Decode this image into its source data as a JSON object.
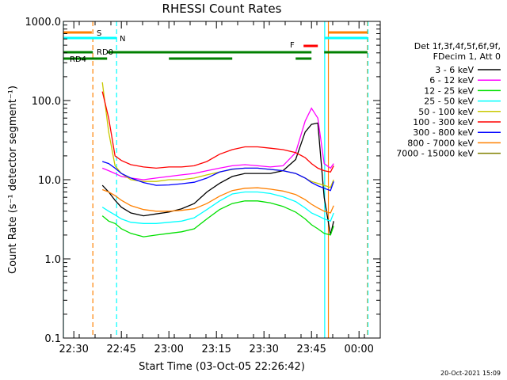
{
  "chart_data": {
    "type": "line",
    "title": "RHESSI Count Rates",
    "xlabel": "Start Time (03-Oct-05 22:26:42)",
    "ylabel": "Count Rate (s⁻¹ detector segment⁻¹)",
    "yscale": "log",
    "ylim": [
      0.1,
      1000
    ],
    "xlim_minutes": [
      22.45,
      22.0
    ],
    "y_ticks": [
      "0.1",
      "1.0",
      "10.0",
      "100.0",
      "1000.0"
    ],
    "x_ticks": [
      {
        "t": "22:30"
      },
      {
        "t": "22:45"
      },
      {
        "t": "23:00"
      },
      {
        "t": "23:15"
      },
      {
        "t": "23:30"
      },
      {
        "t": "23:45"
      },
      {
        "t": "00:00"
      }
    ],
    "legend_header": [
      "Det 1f,3f,4f,5f,6f,9f,",
      "FDecim 1, Att 0"
    ],
    "legend_position": "right",
    "timestamp": "20-Oct-2021 15:09",
    "x": [
      "22:39",
      "22:41",
      "22:43",
      "22:45",
      "22:48",
      "22:52",
      "22:56",
      "23:00",
      "23:04",
      "23:08",
      "23:12",
      "23:16",
      "23:20",
      "23:24",
      "23:28",
      "23:32",
      "23:36",
      "23:40",
      "23:43",
      "23:45",
      "23:47",
      "23:49",
      "23:51",
      "23:52"
    ],
    "series": [
      {
        "name": "3 - 6 keV",
        "color": "#000000",
        "values": [
          8.5,
          7,
          5.5,
          4.5,
          3.8,
          3.5,
          3.7,
          3.9,
          4.3,
          5,
          7,
          9,
          11,
          12,
          12,
          12,
          13,
          18,
          40,
          50,
          52,
          6,
          2,
          3
        ]
      },
      {
        "name": "6 - 12 keV",
        "color": "#ff00ff",
        "values": [
          14,
          13,
          12,
          11,
          10.5,
          10,
          10.5,
          11,
          11.5,
          12,
          13,
          14,
          15,
          15.5,
          15,
          14.5,
          15,
          22,
          55,
          80,
          60,
          16,
          14,
          16
        ]
      },
      {
        "name": "12 - 25 keV",
        "color": "#00e000",
        "values": [
          3.5,
          3,
          2.8,
          2.4,
          2.1,
          1.9,
          2,
          2.1,
          2.2,
          2.4,
          3.2,
          4.2,
          5,
          5.4,
          5.4,
          5.1,
          4.6,
          3.9,
          3.2,
          2.7,
          2.4,
          2.1,
          2.0,
          2.6
        ]
      },
      {
        "name": "25 - 50 keV",
        "color": "#00ffff",
        "values": [
          4.5,
          4,
          3.6,
          3.2,
          2.9,
          2.8,
          2.8,
          2.9,
          3,
          3.3,
          4.2,
          5.4,
          6.6,
          7,
          7,
          6.7,
          6.1,
          5.3,
          4.4,
          3.8,
          3.5,
          3.2,
          3.0,
          3.8
        ]
      },
      {
        "name": "50 - 100 keV",
        "color": "#c8c800",
        "values": [
          170,
          40,
          15,
          12,
          10,
          9.5,
          9.5,
          10,
          10,
          10.5,
          11.5,
          12.5,
          13.5,
          14,
          14,
          13.5,
          13,
          12,
          10.5,
          9.5,
          9,
          8.5,
          8,
          10
        ]
      },
      {
        "name": "100 - 300 keV",
        "color": "#ff0000",
        "values": [
          130,
          60,
          20,
          17.5,
          15.5,
          14.5,
          14,
          14.5,
          14.5,
          15,
          17,
          21,
          24,
          26,
          26,
          25,
          24,
          22,
          19,
          16,
          14,
          13,
          12.5,
          15
        ]
      },
      {
        "name": "300 - 800 keV",
        "color": "#0000ff",
        "values": [
          17,
          16,
          14,
          12,
          10.5,
          9.2,
          8.5,
          8.6,
          8.9,
          9.3,
          10.5,
          12.5,
          13.6,
          14,
          14,
          13.5,
          13,
          12,
          10.5,
          9.2,
          8.4,
          7.8,
          7.3,
          9.5
        ]
      },
      {
        "name": "800 - 7000 keV",
        "color": "#ff8000",
        "values": [
          7.5,
          7,
          6.3,
          5.5,
          4.7,
          4.2,
          4,
          4,
          4.1,
          4.3,
          5,
          6.2,
          7.3,
          7.8,
          7.9,
          7.6,
          7.2,
          6.5,
          5.6,
          4.9,
          4.4,
          4.0,
          3.8,
          4.7
        ]
      },
      {
        "name": "7000 - 15000 keV",
        "color": "#808000",
        "values": [
          null,
          null,
          null,
          null,
          null,
          null,
          null,
          null,
          null,
          null,
          null,
          null,
          null,
          null,
          null,
          null,
          null,
          null,
          null,
          null,
          null,
          null,
          null,
          null
        ]
      }
    ],
    "vertical_markers": [
      {
        "t": "22:26:42",
        "color": "#00ffff",
        "style": "solid"
      },
      {
        "t": "22:36:00",
        "color": "#ff8000",
        "style": "dashed"
      },
      {
        "t": "22:43:30",
        "color": "#00ffff",
        "style": "dashed"
      },
      {
        "t": "23:49:10",
        "color": "#00ffff",
        "style": "solid"
      },
      {
        "t": "23:50:20",
        "color": "#ff8000",
        "style": "solid"
      },
      {
        "t": "00:02:40",
        "color": "#ff8000",
        "style": "dashed"
      },
      {
        "t": "00:02:50",
        "color": "#00ffff",
        "style": "dashed"
      }
    ],
    "flag_bars": [
      {
        "label": "S",
        "color": "#ff8000",
        "segments": [
          [
            "22:26:42",
            "22:35:40"
          ],
          [
            "23:50:20",
            "00:02:40"
          ]
        ]
      },
      {
        "label": "N",
        "color": "#00ffff",
        "segments": [
          [
            "22:26:42",
            "22:43:30"
          ],
          [
            "23:49:10",
            "00:02:40"
          ]
        ]
      },
      {
        "label": "F",
        "color": "#ff0000",
        "segments": [
          [
            "23:42:30",
            "23:47:00"
          ]
        ]
      },
      {
        "label": "RD0",
        "color": "#008000",
        "segments": [
          [
            "22:26:42",
            "22:36:00"
          ],
          [
            "22:40:30",
            "23:45:00"
          ],
          [
            "23:49:00",
            "00:02:40"
          ]
        ]
      },
      {
        "label": "RD4",
        "color": "#008000",
        "segments": [
          [
            "22:26:42",
            "22:40:30"
          ],
          [
            "23:00:00",
            "23:20:00"
          ],
          [
            "23:40:00",
            "23:45:00"
          ]
        ]
      }
    ]
  }
}
